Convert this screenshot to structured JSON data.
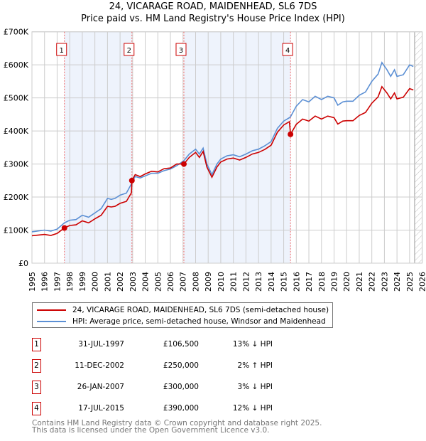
{
  "chart_data": {
    "type": "line",
    "title": "24, VICARAGE ROAD, MAIDENHEAD, SL6 7DS",
    "subtitle": "Price paid vs. HM Land Registry's House Price Index (HPI)",
    "xlim": [
      1995,
      2026
    ],
    "ylim": [
      0,
      700000
    ],
    "grid": true,
    "x_ticks": [
      "1995",
      "1996",
      "1997",
      "1998",
      "1999",
      "2000",
      "2001",
      "2002",
      "2003",
      "2004",
      "2005",
      "2006",
      "2007",
      "2008",
      "2009",
      "2010",
      "2011",
      "2012",
      "2013",
      "2014",
      "2015",
      "2016",
      "2017",
      "2018",
      "2019",
      "2020",
      "2021",
      "2022",
      "2023",
      "2024",
      "2025",
      "2026"
    ],
    "y_ticks": [
      {
        "v": 0,
        "label": "£0"
      },
      {
        "v": 100000,
        "label": "£100K"
      },
      {
        "v": 200000,
        "label": "£200K"
      },
      {
        "v": 300000,
        "label": "£300K"
      },
      {
        "v": 400000,
        "label": "£400K"
      },
      {
        "v": 500000,
        "label": "£500K"
      },
      {
        "v": 600000,
        "label": "£600K"
      },
      {
        "v": 700000,
        "label": "£700K"
      }
    ],
    "x": [
      1995.0,
      1996.0,
      1996.5,
      1997.0,
      1997.58,
      1998.0,
      1998.5,
      1999.0,
      1999.5,
      2000.0,
      2000.5,
      2001.0,
      2001.3,
      2001.6,
      2002.0,
      2002.5,
      2002.9,
      2002.94,
      2003.2,
      2003.6,
      2004.0,
      2004.5,
      2005.0,
      2005.5,
      2006.0,
      2006.5,
      2007.07,
      2007.5,
      2008.0,
      2008.3,
      2008.6,
      2008.9,
      2009.3,
      2009.7,
      2010.0,
      2010.5,
      2011.0,
      2011.5,
      2012.0,
      2012.5,
      2013.0,
      2013.5,
      2014.0,
      2014.5,
      2015.0,
      2015.45,
      2015.54,
      2016.0,
      2016.5,
      2017.0,
      2017.5,
      2018.0,
      2018.5,
      2019.0,
      2019.3,
      2019.7,
      2020.0,
      2020.5,
      2021.0,
      2021.5,
      2022.0,
      2022.5,
      2022.8,
      2023.2,
      2023.5,
      2023.8,
      2024.0,
      2024.5,
      2025.0,
      2025.3
    ],
    "series": [
      {
        "name": "24, VICARAGE ROAD, MAIDENHEAD, SL6 7DS (semi-detached house)",
        "color": "#cc0000",
        "values": [
          83,
          87,
          84,
          90,
          106.5,
          114,
          116,
          128,
          122,
          134,
          145,
          172,
          170,
          172,
          181,
          187,
          213,
          250,
          268,
          262,
          270,
          278,
          276,
          286,
          288,
          300,
          300,
          320,
          335,
          320,
          338,
          291,
          260,
          291,
          306,
          315,
          318,
          312,
          320,
          330,
          335,
          344,
          357,
          396,
          418,
          428,
          390,
          420,
          436,
          430,
          445,
          436,
          445,
          440,
          421,
          430,
          431,
          431,
          447,
          456,
          484,
          503,
          534,
          515,
          497,
          515,
          497,
          502,
          528,
          524
        ]
      },
      {
        "name": "HPI: Average price, semi-detached house, Windsor and Maidenhead",
        "color": "#5b8fd4",
        "values": [
          95,
          100,
          97,
          103,
          122,
          130,
          132,
          145,
          139,
          152,
          165,
          196,
          193,
          196,
          206,
          212,
          240,
          245,
          262,
          258,
          264,
          272,
          272,
          280,
          285,
          295,
          310,
          330,
          345,
          330,
          348,
          300,
          268,
          300,
          315,
          325,
          328,
          322,
          330,
          340,
          345,
          355,
          368,
          408,
          430,
          440,
          443,
          475,
          495,
          488,
          505,
          495,
          505,
          500,
          478,
          488,
          490,
          490,
          508,
          518,
          550,
          572,
          607,
          585,
          565,
          585,
          565,
          570,
          600,
          595
        ]
      }
    ],
    "value_unit": "£K",
    "sales": [
      {
        "n": "1",
        "x": 1997.58,
        "price": 106500
      },
      {
        "n": "2",
        "x": 2002.94,
        "price": 250000
      },
      {
        "n": "3",
        "x": 2007.07,
        "price": 300000
      },
      {
        "n": "4",
        "x": 2015.54,
        "price": 390000
      }
    ],
    "shaded_ranges": [
      [
        1997.58,
        2002.94
      ],
      [
        2007.07,
        2015.54
      ]
    ],
    "forecast_hatch_from": 2025.4,
    "legend_placement": "below"
  },
  "table": [
    {
      "n": "1",
      "date": "31-JUL-1997",
      "price": "£106,500",
      "hpi": "13% ↓ HPI"
    },
    {
      "n": "2",
      "date": "11-DEC-2002",
      "price": "£250,000",
      "hpi": "2% ↑ HPI"
    },
    {
      "n": "3",
      "date": "26-JAN-2007",
      "price": "£300,000",
      "hpi": "3% ↓ HPI"
    },
    {
      "n": "4",
      "date": "17-JUL-2015",
      "price": "£390,000",
      "hpi": "12% ↓ HPI"
    }
  ],
  "footer": {
    "line1": "Contains HM Land Registry data © Crown copyright and database right 2025.",
    "line2": "This data is licensed under the Open Government Licence v3.0."
  }
}
